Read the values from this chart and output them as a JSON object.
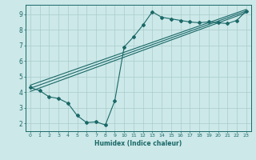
{
  "xlabel": "Humidex (Indice chaleur)",
  "xlim": [
    -0.5,
    23.5
  ],
  "ylim": [
    1.5,
    9.6
  ],
  "yticks": [
    2,
    3,
    4,
    5,
    6,
    7,
    8,
    9
  ],
  "xticks": [
    0,
    1,
    2,
    3,
    4,
    5,
    6,
    7,
    8,
    9,
    10,
    11,
    12,
    13,
    14,
    15,
    16,
    17,
    18,
    19,
    20,
    21,
    22,
    23
  ],
  "bg_color": "#cce8e8",
  "grid_color": "#aacccc",
  "line_color": "#1a6868",
  "line1_x": [
    0,
    1,
    2,
    3,
    4,
    5,
    6,
    7,
    8,
    9,
    10,
    11,
    12,
    13,
    14,
    15,
    16,
    17,
    18,
    19,
    20,
    21,
    22,
    23
  ],
  "line1_y": [
    4.3,
    4.1,
    3.7,
    3.6,
    3.3,
    2.5,
    2.05,
    2.1,
    1.9,
    3.45,
    6.9,
    7.55,
    8.3,
    9.15,
    8.8,
    8.7,
    8.6,
    8.5,
    8.45,
    8.5,
    8.45,
    8.4,
    8.6,
    9.2
  ],
  "line2_x": [
    0,
    23
  ],
  "line2_y": [
    4.05,
    9.1
  ],
  "line3_x": [
    0,
    23
  ],
  "line3_y": [
    4.25,
    9.2
  ],
  "line4_x": [
    0,
    23
  ],
  "line4_y": [
    4.45,
    9.3
  ]
}
